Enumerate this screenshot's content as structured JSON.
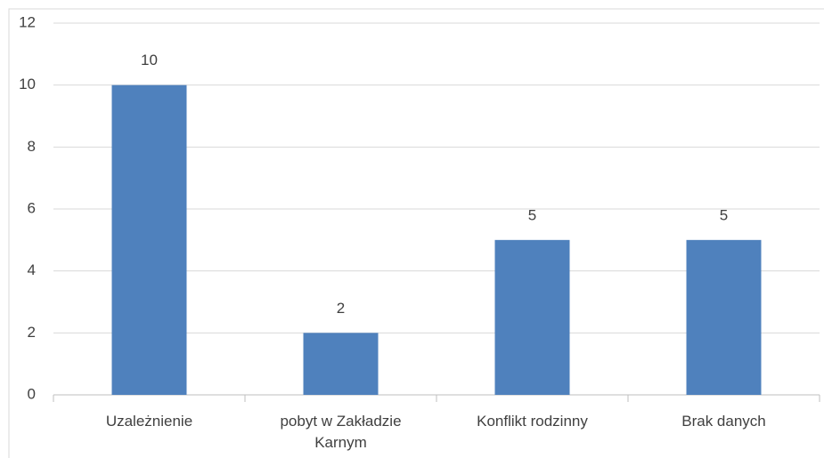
{
  "chart_data": {
    "type": "bar",
    "categories": [
      "Uzależnienie",
      "pobyt w Zakładzie Karnym",
      "Konflikt rodzinny",
      "Brak danych"
    ],
    "values": [
      10,
      2,
      5,
      5
    ],
    "color": "#4f81bd",
    "ylim": [
      0,
      12
    ],
    "yticks": [
      0,
      2,
      4,
      6,
      8,
      10,
      12
    ],
    "grid": true
  }
}
